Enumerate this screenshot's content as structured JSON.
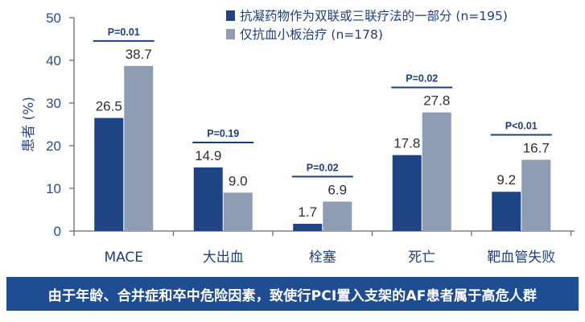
{
  "chart_data": {
    "type": "bar",
    "title": "",
    "xlabel": "",
    "ylabel": "患者 (%)",
    "ylim": [
      0,
      50
    ],
    "yticks": [
      0,
      10,
      20,
      30,
      40,
      50
    ],
    "grid": false,
    "legend_position": "top-right",
    "categories": [
      "MACE",
      "大出血",
      "栓塞",
      "死亡",
      "靶血管失败"
    ],
    "series": [
      {
        "name": "抗凝药物作为双联或三联疗法的一部分 (n=195)",
        "color": "#1f4485",
        "values": [
          26.5,
          14.9,
          1.7,
          17.8,
          9.2
        ]
      },
      {
        "name": "仅抗血小板治疗 (n=178)",
        "color": "#8e9db4",
        "values": [
          38.7,
          9.0,
          6.9,
          27.8,
          16.7
        ]
      }
    ],
    "data_labels": [
      [
        "26.5",
        "14.9",
        "1.7",
        "17.8",
        "9.2"
      ],
      [
        "38.7",
        "9.0",
        "6.9",
        "27.8",
        "16.7"
      ]
    ],
    "p_values": [
      "P=0.01",
      "P=0.19",
      "P=0.02",
      "P=0.02",
      "P<0.01"
    ]
  },
  "banner": {
    "text": "由于年龄、合并症和卒中危险因素，致使行PCI置入支架的AF患者属于高危人群"
  }
}
